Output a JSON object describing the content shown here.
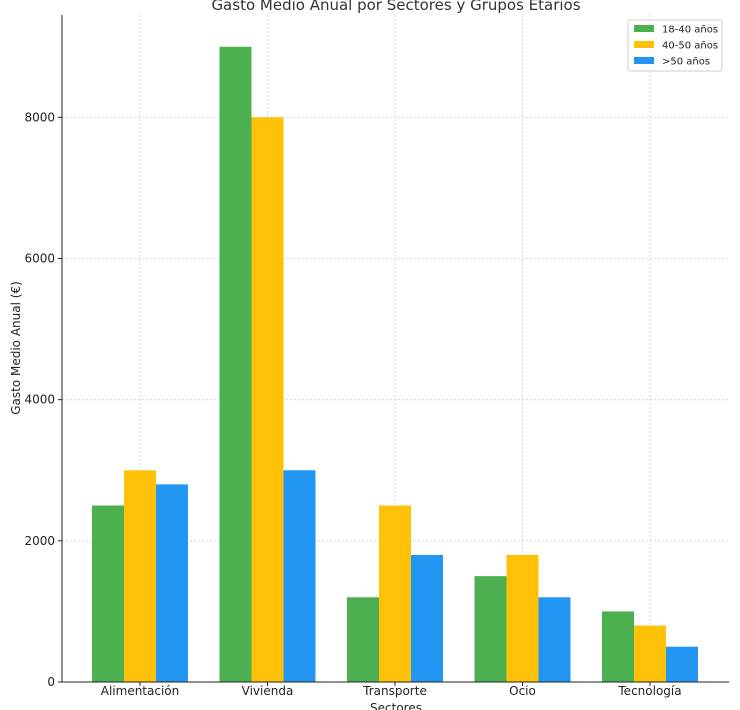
{
  "chart_data": {
    "type": "bar",
    "title": "Gasto Medio Anual por Sectores y Grupos Etarios",
    "xlabel": "Sectores",
    "ylabel": "Gasto Medio Anual (€)",
    "ylim": [
      0,
      9450
    ],
    "yticks": [
      0,
      2000,
      4000,
      6000,
      8000
    ],
    "grid": true,
    "legend_position": "top-right",
    "categories": [
      "Alimentación",
      "Vivienda",
      "Transporte",
      "Ocio",
      "Tecnología"
    ],
    "series": [
      {
        "name": "18-40 años",
        "color": "#4caf50",
        "values": [
          2500,
          9000,
          1200,
          1500,
          1000
        ]
      },
      {
        "name": "40-50 años",
        "color": "#ffc107",
        "values": [
          3000,
          8000,
          2500,
          1800,
          800
        ]
      },
      {
        "name": ">50 años",
        "color": "#2196f3",
        "values": [
          2800,
          3000,
          1800,
          1200,
          500
        ]
      }
    ]
  }
}
